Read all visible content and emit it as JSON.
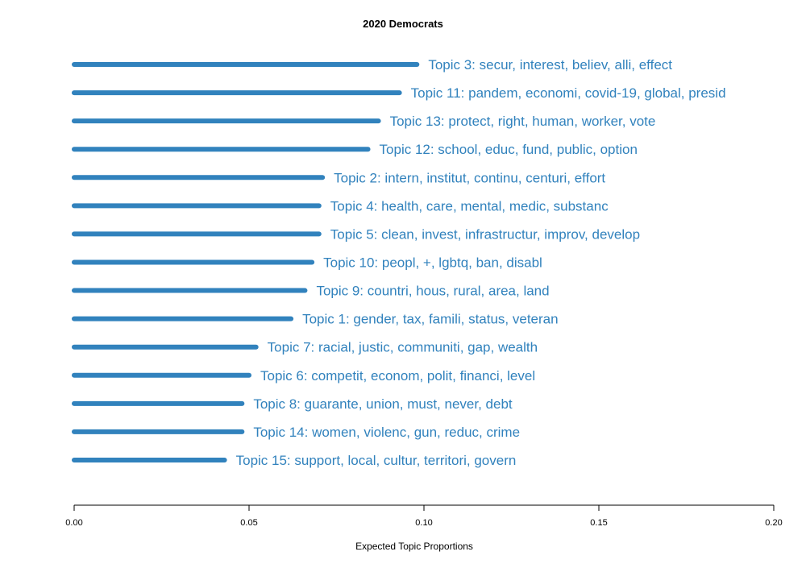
{
  "chart_data": {
    "type": "bar",
    "orientation": "horizontal",
    "title": "2020 Democrats",
    "xlabel": "Expected Topic Proportions",
    "ylabel": "",
    "xlim": [
      0,
      0.2
    ],
    "xticks": [
      0.0,
      0.05,
      0.1,
      0.15,
      0.2
    ],
    "xtick_labels": [
      "0.00",
      "0.05",
      "0.10",
      "0.15",
      "0.20"
    ],
    "grid": false,
    "color": "#3182bd",
    "categories": [
      "Topic 3: secur, interest, believ, alli, effect",
      "Topic 11: pandem, economi, covid-19, global, presid",
      "Topic 13: protect, right, human, worker, vote",
      "Topic 12: school, educ, fund, public, option",
      "Topic 2: intern, institut, continu, centuri, effort",
      "Topic 4: health, care, mental, medic, substanc",
      "Topic 5: clean, invest, infrastructur, improv, develop",
      "Topic 10: peopl, +, lgbtq, ban, disabl",
      "Topic 9: countri, hous, rural, area, land",
      "Topic 1: gender, tax, famili, status, veteran",
      "Topic 7: racial, justic, communiti, gap, wealth",
      "Topic 6: competit, econom, polit, financi, level",
      "Topic 8: guarante, union, must, never, debt",
      "Topic 14: women, violenc, gun, reduc, crime",
      "Topic 15: support, local, cultur, territori, govern"
    ],
    "values": [
      0.098,
      0.093,
      0.087,
      0.084,
      0.071,
      0.07,
      0.07,
      0.068,
      0.066,
      0.062,
      0.052,
      0.05,
      0.048,
      0.048,
      0.043
    ]
  }
}
